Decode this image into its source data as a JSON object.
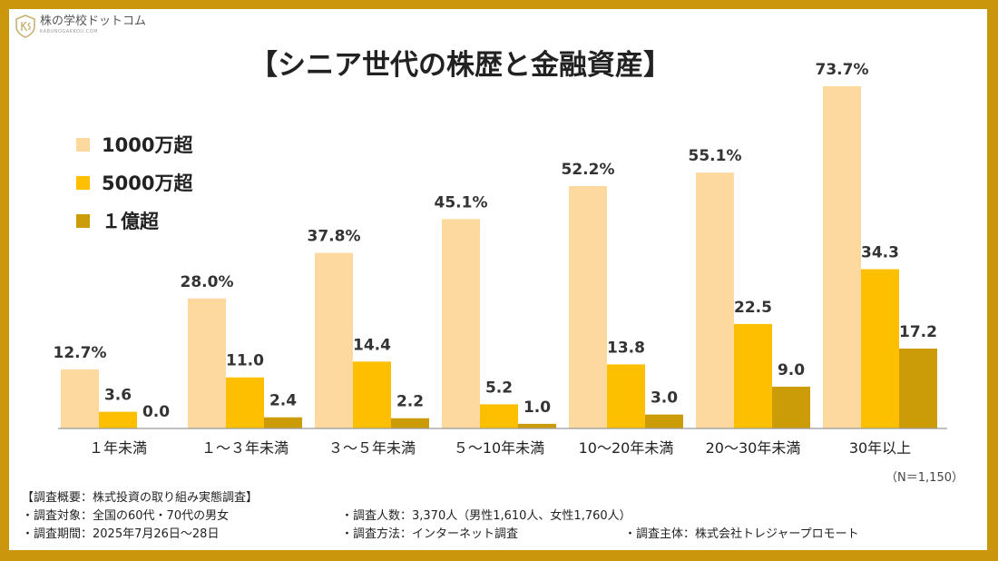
{
  "brand": {
    "name": "株の学校ドットコム",
    "sub": "KABUNOGAKKOU.COM"
  },
  "chart_data": {
    "type": "bar",
    "title": "【シニア世代の株歴と金融資産】",
    "xlabel": "",
    "ylabel": "",
    "ylim": [
      0,
      80
    ],
    "grid": false,
    "legend_position": "top-left",
    "categories": [
      "１年未満",
      "１～３年未満",
      "３～５年未満",
      "５～10年未満",
      "10～20年未満",
      "20～30年未満",
      "30年以上"
    ],
    "series": [
      {
        "name": "1000万超",
        "color": "#fdd9a0",
        "values": [
          12.7,
          28.0,
          37.8,
          45.1,
          52.2,
          55.1,
          73.7
        ],
        "labels": [
          "12.7%",
          "28.0%",
          "37.8%",
          "45.1%",
          "52.2%",
          "55.1%",
          "73.7%"
        ]
      },
      {
        "name": "5000万超",
        "color": "#fdbf00",
        "values": [
          3.6,
          11.0,
          14.4,
          5.2,
          13.8,
          22.5,
          34.3
        ],
        "labels": [
          "3.6",
          "11.0",
          "14.4",
          "5.2",
          "13.8",
          "22.5",
          "34.3"
        ]
      },
      {
        "name": "１億超",
        "color": "#cc9c08",
        "values": [
          0.0,
          2.4,
          2.2,
          1.0,
          3.0,
          9.0,
          17.2
        ],
        "labels": [
          "0.0",
          "2.4",
          "2.2",
          "1.0",
          "3.0",
          "9.0",
          "17.2"
        ]
      }
    ],
    "n_note": "（N＝1,150）"
  },
  "notes": {
    "heading": "【調査概要：株式投資の取り組み実態調査】",
    "target": "・調査対象：全国の60代・70代の男女",
    "respondents": "・調査人数：3,370人（男性1,610人、女性1,760人）",
    "period": "・調査期間：2025年7月26日～28日",
    "method": "・調査方法：インターネット調査",
    "organizer": "・調査主体：株式会社トレジャープロモート"
  }
}
